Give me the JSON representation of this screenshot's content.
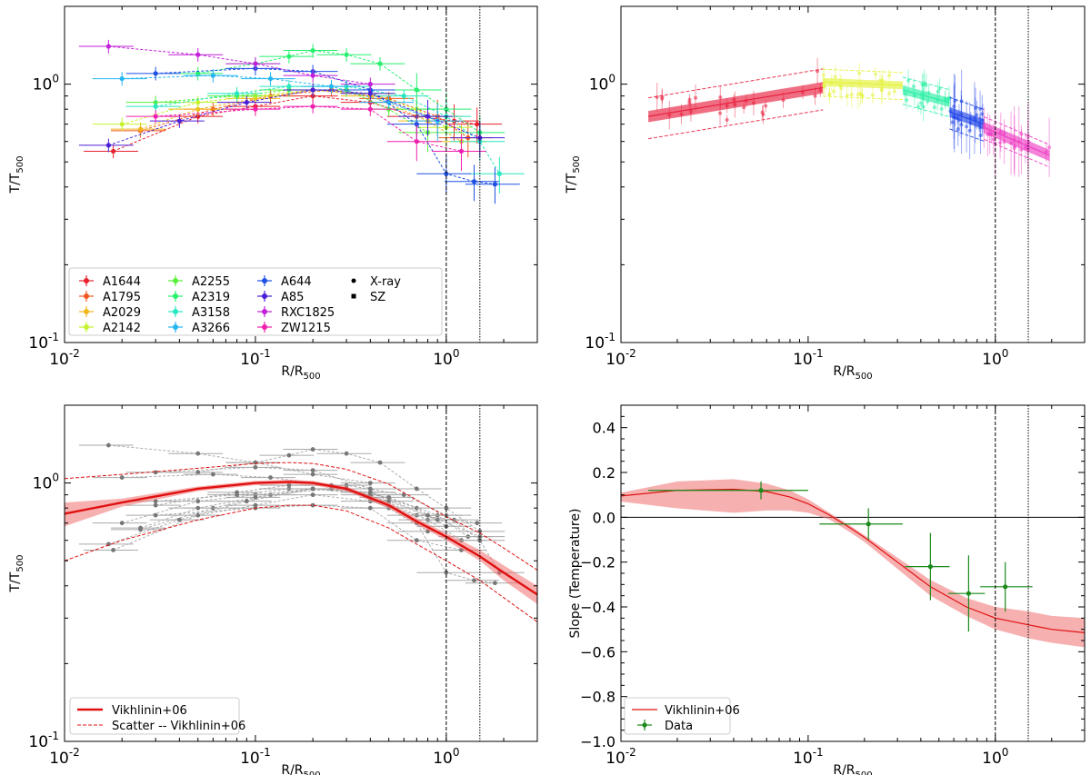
{
  "figure": {
    "x_label": "R/R",
    "x_label_sub": "500",
    "y_label_T": "T/T",
    "y_label_T_sub": "500",
    "y_label_slope": "Slope (Temperature)"
  },
  "chart_data": [
    {
      "type": "scatter",
      "panel": "top-left",
      "xscale": "log",
      "yscale": "log",
      "xlim": [
        0.01,
        3
      ],
      "ylim": [
        0.1,
        2
      ],
      "xticks": [
        {
          "v": 0.01,
          "label": "10",
          "exp": "-2"
        },
        {
          "v": 0.1,
          "label": "10",
          "exp": "-1"
        },
        {
          "v": 1,
          "label": "10",
          "exp": "0"
        }
      ],
      "yticks": [
        {
          "v": 0.1,
          "label": "10",
          "exp": "-1"
        },
        {
          "v": 1,
          "label": "10",
          "exp": "0"
        }
      ],
      "vlines": [
        1.0,
        1.5
      ],
      "legend_position": "lower-left",
      "series": [
        {
          "name": "A1644",
          "color": "#e8212e",
          "x": [
            0.018,
            0.05,
            0.1,
            0.2,
            0.4,
            0.7,
            1.1,
            1.45
          ],
          "y": [
            0.55,
            0.75,
            0.82,
            0.9,
            0.85,
            0.75,
            0.72,
            0.7
          ]
        },
        {
          "name": "A1795",
          "color": "#f0561e",
          "x": [
            0.025,
            0.06,
            0.12,
            0.25,
            0.5,
            0.9,
            1.3
          ],
          "y": [
            0.66,
            0.8,
            0.9,
            0.95,
            0.88,
            0.75,
            0.62
          ]
        },
        {
          "name": "A2029",
          "color": "#f2b51c",
          "x": [
            0.025,
            0.05,
            0.1,
            0.2,
            0.4,
            0.8,
            1.2
          ],
          "y": [
            0.67,
            0.8,
            0.88,
            0.95,
            0.9,
            0.72,
            0.6
          ]
        },
        {
          "name": "A2142",
          "color": "#c6f230",
          "x": [
            0.02,
            0.05,
            0.1,
            0.2,
            0.4,
            0.7,
            1.0
          ],
          "y": [
            0.7,
            0.85,
            0.9,
            0.95,
            0.92,
            0.8,
            0.68
          ]
        },
        {
          "name": "A2255",
          "color": "#57f03a",
          "x": [
            0.03,
            0.08,
            0.15,
            0.3,
            0.5,
            0.8
          ],
          "y": [
            0.85,
            0.9,
            0.95,
            0.95,
            0.8,
            0.65
          ]
        },
        {
          "name": "A2319",
          "color": "#26f06e",
          "x": [
            0.05,
            0.1,
            0.15,
            0.2,
            0.3,
            0.45,
            0.7,
            1.0,
            1.5
          ],
          "y": [
            1.1,
            1.2,
            1.28,
            1.35,
            1.3,
            1.2,
            0.95,
            0.8,
            0.65
          ]
        },
        {
          "name": "A3158",
          "color": "#27e8c0",
          "x": [
            0.03,
            0.08,
            0.15,
            0.3,
            0.6,
            1.0,
            1.5,
            1.9
          ],
          "y": [
            0.82,
            0.92,
            0.98,
            0.98,
            0.9,
            0.75,
            0.6,
            0.45
          ]
        },
        {
          "name": "A3266",
          "color": "#25b6ef",
          "x": [
            0.02,
            0.06,
            0.12,
            0.25,
            0.5,
            0.9
          ],
          "y": [
            1.05,
            1.08,
            1.05,
            0.98,
            0.85,
            0.72
          ]
        },
        {
          "name": "A644",
          "color": "#1f50e6",
          "x": [
            0.03,
            0.1,
            0.2,
            0.4,
            0.7,
            1.0,
            1.4,
            1.8
          ],
          "y": [
            1.1,
            1.15,
            1.12,
            0.95,
            0.7,
            0.45,
            0.42,
            0.41
          ]
        },
        {
          "name": "A85",
          "color": "#4a1fd6",
          "x": [
            0.017,
            0.04,
            0.09,
            0.2,
            0.4,
            0.8,
            1.5
          ],
          "y": [
            0.58,
            0.72,
            0.85,
            0.95,
            0.92,
            0.75,
            0.62
          ]
        },
        {
          "name": "RXC1825",
          "color": "#c21fd9",
          "x": [
            0.017,
            0.05,
            0.1,
            0.2,
            0.4
          ],
          "y": [
            1.4,
            1.3,
            1.2,
            1.08,
            1.0
          ]
        },
        {
          "name": "ZW1215",
          "color": "#f01fae",
          "x": [
            0.03,
            0.1,
            0.2,
            0.4,
            0.7,
            1.2
          ],
          "y": [
            0.75,
            0.8,
            0.82,
            0.8,
            0.6,
            0.55
          ]
        }
      ],
      "legend_markers": [
        {
          "name": "X-ray",
          "marker": "circle"
        },
        {
          "name": "SZ",
          "marker": "square"
        }
      ]
    },
    {
      "type": "scatter",
      "panel": "top-right",
      "xscale": "log",
      "yscale": "log",
      "xlim": [
        0.01,
        3
      ],
      "ylim": [
        0.1,
        2
      ],
      "xticks": [
        {
          "v": 0.01,
          "label": "10",
          "exp": "-2"
        },
        {
          "v": 0.1,
          "label": "10",
          "exp": "-1"
        },
        {
          "v": 1,
          "label": "10",
          "exp": "0"
        }
      ],
      "yticks": [
        {
          "v": 0.1,
          "label": "10",
          "exp": "-1"
        },
        {
          "v": 1,
          "label": "10",
          "exp": "0"
        }
      ],
      "vlines": [
        1.0,
        1.5
      ],
      "segments": [
        {
          "color": "#e8213f",
          "x0": 0.014,
          "x1": 0.12,
          "y0": 0.75,
          "y1": 0.97,
          "band": 0.05,
          "scatter": 0.18
        },
        {
          "color": "#e4f23a",
          "x0": 0.12,
          "x1": 0.32,
          "y0": 1.02,
          "y1": 0.99,
          "band": 0.035,
          "scatter": 0.12
        },
        {
          "color": "#2df0a6",
          "x0": 0.32,
          "x1": 0.57,
          "y0": 0.95,
          "y1": 0.85,
          "band": 0.04,
          "scatter": 0.12
        },
        {
          "color": "#2448e8",
          "x0": 0.57,
          "x1": 0.87,
          "y0": 0.78,
          "y1": 0.7,
          "band": 0.045,
          "scatter": 0.14
        },
        {
          "color": "#ee3fc3",
          "x0": 0.87,
          "x1": 1.95,
          "y0": 0.68,
          "y1": 0.53,
          "band": 0.05,
          "scatter": 0.1
        }
      ]
    },
    {
      "type": "line",
      "panel": "bottom-left",
      "xscale": "log",
      "yscale": "log",
      "xlim": [
        0.01,
        3
      ],
      "ylim": [
        0.1,
        2
      ],
      "xticks": [
        {
          "v": 0.01,
          "label": "10",
          "exp": "-2"
        },
        {
          "v": 0.1,
          "label": "10",
          "exp": "-1"
        },
        {
          "v": 1,
          "label": "10",
          "exp": "0"
        }
      ],
      "yticks": [
        {
          "v": 0.1,
          "label": "10",
          "exp": "-1"
        },
        {
          "v": 1,
          "label": "10",
          "exp": "0"
        }
      ],
      "vlines": [
        1.0,
        1.5
      ],
      "model": {
        "name": "Vikhlinin+06",
        "x": [
          0.01,
          0.02,
          0.05,
          0.1,
          0.15,
          0.2,
          0.3,
          0.5,
          0.7,
          1.0,
          1.5,
          2.0,
          3.0
        ],
        "y": [
          0.76,
          0.84,
          0.95,
          1.0,
          1.01,
          1.0,
          0.95,
          0.82,
          0.71,
          0.62,
          0.52,
          0.45,
          0.37
        ],
        "band_lo": [
          0.68,
          0.81,
          0.93,
          0.98,
          0.99,
          0.98,
          0.93,
          0.8,
          0.69,
          0.6,
          0.5,
          0.42,
          0.34
        ],
        "band_hi": [
          0.84,
          0.87,
          0.97,
          1.02,
          1.03,
          1.02,
          0.97,
          0.84,
          0.73,
          0.64,
          0.55,
          0.48,
          0.4
        ]
      },
      "scatter_model": {
        "name": "Scatter -- Vikhlinin+06",
        "lower": [
          0.5,
          0.6,
          0.72,
          0.8,
          0.82,
          0.82,
          0.78,
          0.67,
          0.58,
          0.5,
          0.42,
          0.36,
          0.29
        ],
        "upper": [
          1.04,
          1.08,
          1.14,
          1.19,
          1.2,
          1.19,
          1.13,
          0.99,
          0.86,
          0.74,
          0.64,
          0.56,
          0.46
        ]
      },
      "legend": [
        "Vikhlinin+06",
        "Scatter -- Vikhlinin+06"
      ]
    },
    {
      "type": "line",
      "panel": "bottom-right",
      "xscale": "log",
      "yscale": "linear",
      "xlim": [
        0.01,
        3
      ],
      "ylim": [
        -1.0,
        0.5
      ],
      "xticks": [
        {
          "v": 0.01,
          "label": "10",
          "exp": "-2"
        },
        {
          "v": 0.1,
          "label": "10",
          "exp": "-1"
        },
        {
          "v": 1,
          "label": "10",
          "exp": "0"
        }
      ],
      "yticks": [
        {
          "v": 0.4,
          "label": "0.4"
        },
        {
          "v": 0.2,
          "label": "0.2"
        },
        {
          "v": 0.0,
          "label": "0.0"
        },
        {
          "v": -0.2,
          "label": "−0.2"
        },
        {
          "v": -0.4,
          "label": "−0.4"
        },
        {
          "v": -0.6,
          "label": "−0.6"
        },
        {
          "v": -0.8,
          "label": "−0.8"
        },
        {
          "v": -1.0,
          "label": "−1.0"
        }
      ],
      "hline": 0.0,
      "vlines": [
        1.0,
        1.5
      ],
      "model": {
        "name": "Vikhlinin+06",
        "x": [
          0.01,
          0.02,
          0.04,
          0.06,
          0.08,
          0.1,
          0.13,
          0.17,
          0.2,
          0.3,
          0.45,
          0.7,
          1.0,
          1.5,
          2.0,
          3.0
        ],
        "y": [
          0.095,
          0.12,
          0.125,
          0.115,
          0.09,
          0.06,
          0.01,
          -0.05,
          -0.09,
          -0.2,
          -0.31,
          -0.4,
          -0.45,
          -0.48,
          -0.5,
          -0.515
        ],
        "band_lo": [
          0.07,
          0.04,
          0.02,
          0.03,
          0.03,
          0.02,
          -0.01,
          -0.07,
          -0.11,
          -0.23,
          -0.35,
          -0.44,
          -0.5,
          -0.54,
          -0.56,
          -0.58
        ],
        "band_hi": [
          0.11,
          0.16,
          0.17,
          0.15,
          0.12,
          0.08,
          0.02,
          -0.04,
          -0.08,
          -0.18,
          -0.28,
          -0.36,
          -0.4,
          -0.42,
          -0.44,
          -0.45
        ]
      },
      "data": {
        "name": "Data",
        "x": [
          0.056,
          0.21,
          0.45,
          0.72,
          1.13
        ],
        "y": [
          0.12,
          -0.03,
          -0.22,
          -0.34,
          -0.31
        ],
        "xerr_lo": [
          0.042,
          0.095,
          0.12,
          0.16,
          0.3
        ],
        "xerr_hi": [
          0.044,
          0.11,
          0.12,
          0.16,
          0.45
        ],
        "yerr": [
          0.04,
          0.07,
          0.15,
          0.17,
          0.11
        ]
      },
      "legend": [
        "Vikhlinin+06",
        "Data"
      ]
    }
  ]
}
